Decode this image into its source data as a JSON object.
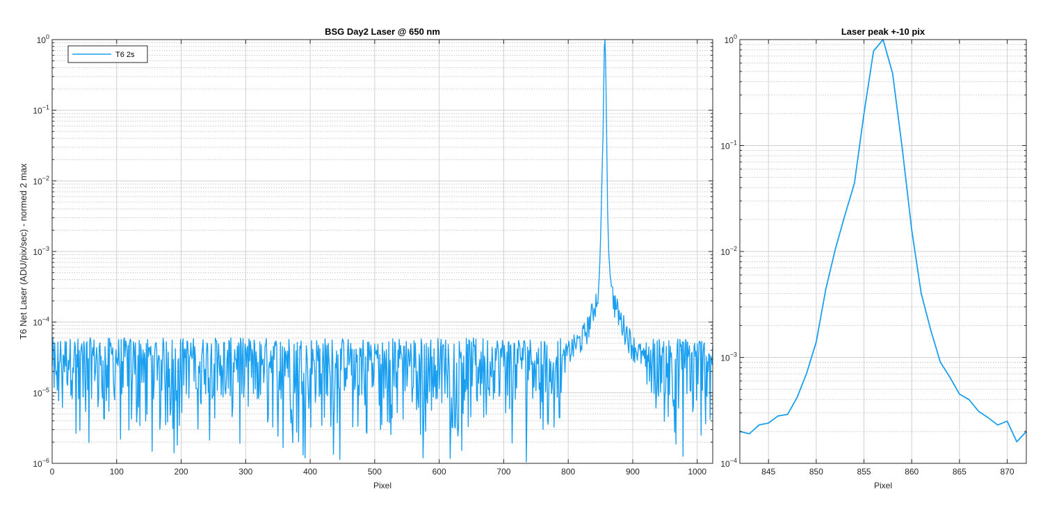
{
  "colors": {
    "line": "#1a9ff0",
    "axis": "#262626",
    "grid_major": "#d0d0d0",
    "grid_minor": "#c8c8c8"
  },
  "chart_data": [
    {
      "type": "line",
      "title": "BSG  Day2 Laser @ 650 nm",
      "xlabel": "Pixel",
      "ylabel": "T6 Net Laser (ADU/pix/sec) - normed 2 max",
      "xscale": "linear",
      "yscale": "log",
      "xlim": [
        0,
        1024
      ],
      "ylim": [
        1e-06,
        1
      ],
      "xticks": [
        0,
        100,
        200,
        300,
        400,
        500,
        600,
        700,
        800,
        900,
        1000
      ],
      "ytick_exponents": [
        -6,
        -5,
        -4,
        -3,
        -2,
        -1,
        0
      ],
      "grid": "major and minor",
      "legend": {
        "placement": "top-left",
        "entries": [
          "T6 2s"
        ]
      },
      "series": [
        {
          "name": "T6 2s",
          "noise_floor_envelope": {
            "x_range": [
              0,
              820
            ],
            "typical_min": 1e-06,
            "typical_max": 6e-05
          },
          "peak_points": [
            [
              790,
              3e-05
            ],
            [
              800,
              4e-05
            ],
            [
              810,
              5e-05
            ],
            [
              820,
              6e-05
            ],
            [
              830,
              9e-05
            ],
            [
              838,
              0.00015
            ],
            [
              842,
              0.0002
            ],
            [
              845,
              0.00025
            ],
            [
              847,
              0.0003
            ],
            [
              848,
              0.00042
            ],
            [
              849,
              0.0007
            ],
            [
              850,
              0.0014
            ],
            [
              851,
              0.003
            ],
            [
              852,
              0.008
            ],
            [
              853,
              0.022
            ],
            [
              854,
              0.045
            ],
            [
              855,
              0.2
            ],
            [
              856,
              0.78
            ],
            [
              857,
              1.0
            ],
            [
              858,
              0.48
            ],
            [
              859,
              0.12
            ],
            [
              860,
              0.02
            ],
            [
              861,
              0.004
            ],
            [
              862,
              0.0018
            ],
            [
              863,
              0.0009
            ],
            [
              864,
              0.00065
            ],
            [
              865,
              0.00045
            ],
            [
              866,
              0.0004
            ],
            [
              867,
              0.00032
            ],
            [
              868,
              0.00027
            ],
            [
              870,
              0.00024
            ],
            [
              872,
              0.0002
            ],
            [
              876,
              0.00016
            ],
            [
              880,
              0.00012
            ],
            [
              890,
              8e-05
            ],
            [
              900,
              5e-05
            ],
            [
              910,
              4e-05
            ],
            [
              920,
              3e-05
            ]
          ]
        }
      ]
    },
    {
      "type": "line",
      "title": "Laser peak +-10 pix",
      "xlabel": "Pixel",
      "ylabel": "",
      "xscale": "linear",
      "yscale": "log",
      "xlim": [
        842,
        872
      ],
      "ylim": [
        0.0001,
        1
      ],
      "xticks": [
        845,
        850,
        855,
        860,
        865,
        870
      ],
      "ytick_exponents": [
        -4,
        -3,
        -2,
        -1,
        0
      ],
      "grid": "major and minor",
      "series": [
        {
          "name": "T6 2s",
          "x": [
            842,
            843,
            844,
            845,
            846,
            847,
            848,
            849,
            850,
            851,
            852,
            853,
            854,
            855,
            856,
            857,
            858,
            859,
            860,
            861,
            862,
            863,
            864,
            865,
            866,
            867,
            868,
            869,
            870,
            871,
            872
          ],
          "y": [
            0.0002,
            0.00019,
            0.00023,
            0.00024,
            0.00028,
            0.00029,
            0.00042,
            0.00071,
            0.0014,
            0.0044,
            0.0105,
            0.022,
            0.044,
            0.2,
            0.78,
            1.0,
            0.48,
            0.095,
            0.016,
            0.004,
            0.0018,
            0.0009,
            0.00065,
            0.00045,
            0.0004,
            0.00031,
            0.00027,
            0.00023,
            0.00025,
            0.00016,
            0.0002
          ]
        }
      ]
    }
  ]
}
